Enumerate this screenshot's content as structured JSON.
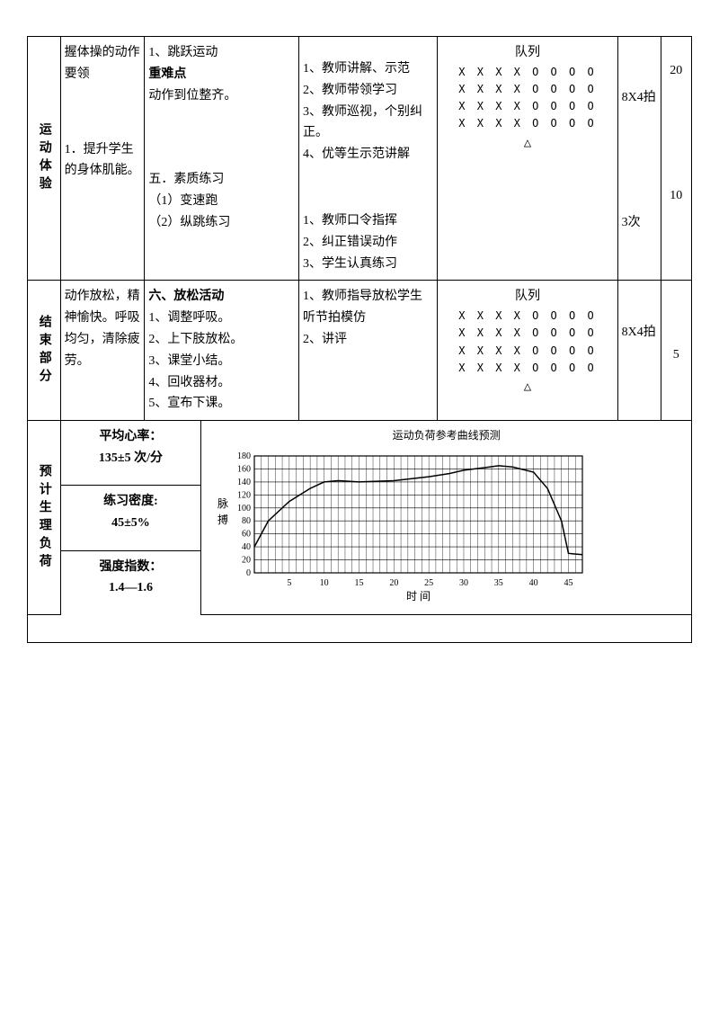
{
  "row1": {
    "section": "运动体验",
    "goal1": "握体操的动作要领",
    "goal2": "1．提升学生的身体肌能。",
    "content_a": "1、跳跃运动",
    "content_b": "重难点",
    "content_c": "动作到位整齐。",
    "content_d": "五．素质练习",
    "content_e": "（1）变速跑",
    "content_f": "（2）纵跳练习",
    "method_a1": "1、教师讲解、示范",
    "method_a2": "2、教师带领学习",
    "method_a3": "3、教师巡视，个别纠正。",
    "method_a4": "4、优等生示范讲解",
    "method_b1": "1、教师口令指挥",
    "method_b2": "2、纠正错误动作",
    "method_b3": "3、学生认真练习",
    "formation_title": "队列",
    "formation_row": "X  X  X  X    O  O  O  O",
    "formation_tri": "△",
    "count1": "8X4拍",
    "count2": "3次",
    "time1": "20",
    "time2": "10"
  },
  "row2": {
    "section": "结束部分",
    "goal": "动作放松，精神愉快。呼吸均匀，清除疲劳。",
    "content_title": "六、放松活动",
    "content_1": "1、调整呼吸。",
    "content_2": "2、上下肢放松。",
    "content_3": "3、课堂小结。",
    "content_4": "4、回收器材。",
    "content_5": "5、宣布下课。",
    "method_1": "1、教师指导放松学生听节拍模仿",
    "method_2": "2、讲评",
    "count": "8X4拍",
    "time": "5"
  },
  "row3": {
    "section": "预计生理负荷",
    "stat1a": "平均心率：",
    "stat1b": "135±5 次/分",
    "stat2a": "练习密度:",
    "stat2b": "45±5%",
    "stat3a": "强度指数：",
    "stat3b": "1.4—1.6",
    "chart_title": "运动负荷参考曲线预测",
    "y_label": "脉搏",
    "x_label": "时    间"
  },
  "chart": {
    "type": "line",
    "x_ticks": [
      5,
      10,
      15,
      20,
      25,
      30,
      35,
      40,
      45
    ],
    "y_ticks": [
      0,
      20,
      40,
      60,
      80,
      100,
      120,
      140,
      160,
      180
    ],
    "xlim": [
      0,
      47
    ],
    "ylim": [
      0,
      180
    ],
    "points_x": [
      0,
      2,
      5,
      8,
      10,
      12,
      15,
      20,
      25,
      28,
      30,
      33,
      35,
      37,
      40,
      42,
      44,
      45,
      47
    ],
    "points_y": [
      40,
      80,
      110,
      130,
      140,
      142,
      140,
      142,
      148,
      153,
      158,
      162,
      165,
      163,
      155,
      130,
      80,
      30,
      28
    ],
    "line_color": "#000000",
    "line_width": 1.5,
    "grid_color": "#000000",
    "background_color": "#ffffff",
    "font_size_ticks": 10,
    "font_size_labels": 12
  }
}
